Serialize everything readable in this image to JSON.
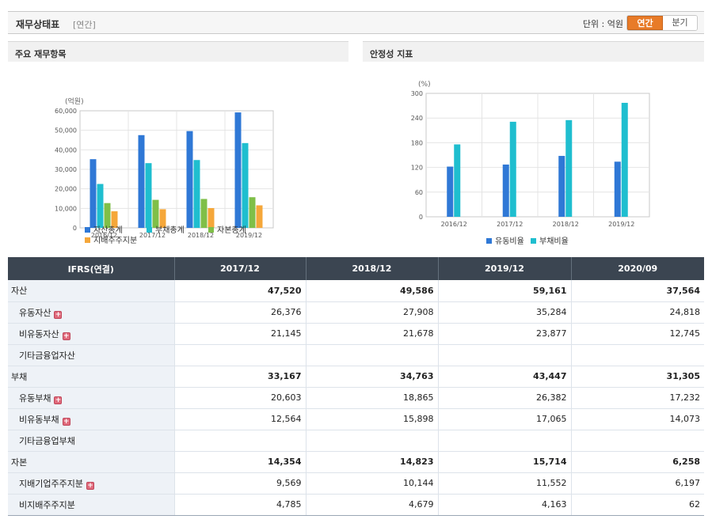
{
  "header": {
    "title": "재무상태표",
    "subtitle": "[연간]",
    "unit_label": "단위 : 억원",
    "toggle": {
      "annual": "연간",
      "quarter": "분기",
      "active": "annual"
    }
  },
  "panels": {
    "left_title": "주요 재무항목",
    "right_title": "안정성 지표"
  },
  "colors": {
    "blue": "#2f78d6",
    "cyan": "#1fbecf",
    "green": "#7fbf48",
    "orange": "#f5a73a",
    "accent": "#e87b28",
    "table_header": "#3b4551"
  },
  "chart_data": [
    {
      "type": "bar",
      "unit_label": "(억원)",
      "categories": [
        "2016/12",
        "2017/12",
        "2018/12",
        "2019/12"
      ],
      "ylim": [
        0,
        60000
      ],
      "yticks": [
        "0",
        "10,000",
        "20,000",
        "30,000",
        "40,000",
        "50,000",
        "60,000"
      ],
      "series": [
        {
          "name": "자산총계",
          "color": "#2f78d6",
          "values": [
            35200,
            47520,
            49586,
            59161
          ]
        },
        {
          "name": "부채총계",
          "color": "#1fbecf",
          "values": [
            22500,
            33167,
            34763,
            43447
          ]
        },
        {
          "name": "자본총계",
          "color": "#7fbf48",
          "values": [
            12700,
            14354,
            14823,
            15714
          ]
        },
        {
          "name": "지배주주지분",
          "color": "#f5a73a",
          "values": [
            8500,
            9569,
            10144,
            11552
          ]
        }
      ],
      "grid": true,
      "legend": "bottom"
    },
    {
      "type": "bar",
      "unit_label": "(%)",
      "categories": [
        "2016/12",
        "2017/12",
        "2018/12",
        "2019/12"
      ],
      "ylim": [
        0,
        300
      ],
      "yticks": [
        "0",
        "60",
        "120",
        "180",
        "240",
        "300"
      ],
      "series": [
        {
          "name": "유동비율",
          "color": "#2f78d6",
          "values": [
            122,
            127,
            148,
            134
          ]
        },
        {
          "name": "부채비율",
          "color": "#1fbecf",
          "values": [
            176,
            231,
            235,
            277
          ]
        }
      ],
      "grid": true,
      "legend": "bottom"
    }
  ],
  "table": {
    "columns": [
      "IFRS(연결)",
      "2017/12",
      "2018/12",
      "2019/12",
      "2020/09"
    ],
    "rows": [
      {
        "label": "자산",
        "level": 0,
        "bold": true,
        "expand": false,
        "values": [
          "47,520",
          "49,586",
          "59,161",
          "37,564"
        ]
      },
      {
        "label": "유동자산",
        "level": 1,
        "bold": false,
        "expand": true,
        "values": [
          "26,376",
          "27,908",
          "35,284",
          "24,818"
        ]
      },
      {
        "label": "비유동자산",
        "level": 1,
        "bold": false,
        "expand": true,
        "values": [
          "21,145",
          "21,678",
          "23,877",
          "12,745"
        ]
      },
      {
        "label": "기타금융업자산",
        "level": 1,
        "bold": false,
        "expand": false,
        "values": [
          "",
          "",
          "",
          ""
        ]
      },
      {
        "label": "부채",
        "level": 0,
        "bold": true,
        "expand": false,
        "values": [
          "33,167",
          "34,763",
          "43,447",
          "31,305"
        ]
      },
      {
        "label": "유동부채",
        "level": 1,
        "bold": false,
        "expand": true,
        "values": [
          "20,603",
          "18,865",
          "26,382",
          "17,232"
        ]
      },
      {
        "label": "비유동부채",
        "level": 1,
        "bold": false,
        "expand": true,
        "values": [
          "12,564",
          "15,898",
          "17,065",
          "14,073"
        ]
      },
      {
        "label": "기타금융업부채",
        "level": 1,
        "bold": false,
        "expand": false,
        "values": [
          "",
          "",
          "",
          ""
        ]
      },
      {
        "label": "자본",
        "level": 0,
        "bold": true,
        "expand": false,
        "values": [
          "14,354",
          "14,823",
          "15,714",
          "6,258"
        ]
      },
      {
        "label": "지배기업주주지분",
        "level": 1,
        "bold": false,
        "expand": true,
        "values": [
          "9,569",
          "10,144",
          "11,552",
          "6,197"
        ]
      },
      {
        "label": "비지배주주지분",
        "level": 1,
        "bold": false,
        "expand": false,
        "values": [
          "4,785",
          "4,679",
          "4,163",
          "62"
        ]
      }
    ]
  }
}
